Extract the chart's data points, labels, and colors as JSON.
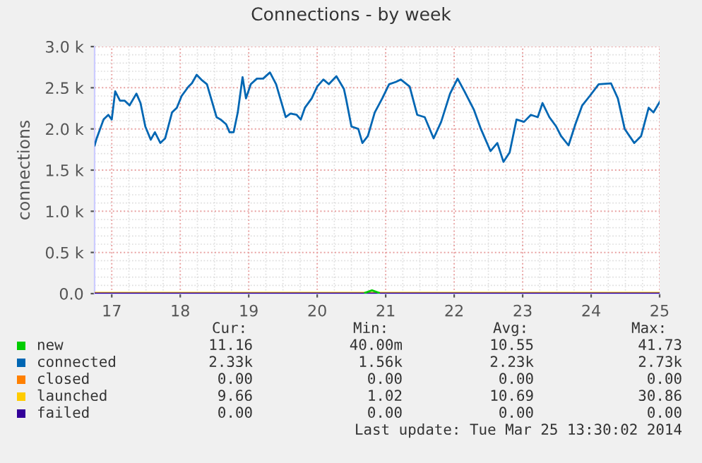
{
  "chart_data": {
    "type": "line",
    "title": "Connections - by week",
    "ylabel": "connections",
    "xlim": [
      16.75,
      25.0
    ],
    "xticks": [
      17,
      18,
      19,
      20,
      21,
      22,
      23,
      24,
      25
    ],
    "ylim": [
      0,
      3000
    ],
    "yticks": [
      {
        "value": 0,
        "label": "0.0"
      },
      {
        "value": 500,
        "label": "0.5 k"
      },
      {
        "value": 1000,
        "label": "1.0 k"
      },
      {
        "value": 1500,
        "label": "1.5 k"
      },
      {
        "value": 2000,
        "label": "2.0 k"
      },
      {
        "value": 2500,
        "label": "2.5 k"
      },
      {
        "value": 3000,
        "label": "3.0 k"
      }
    ],
    "grid": true,
    "legend": "bottom",
    "marker": "none",
    "line_style": "solid",
    "series": [
      {
        "name": "new",
        "color": "#00cc00",
        "x": [
          20.7,
          20.8,
          20.9
        ],
        "values": [
          10,
          40,
          10
        ]
      },
      {
        "name": "connected",
        "color": "#0066b3",
        "x": [
          16.75,
          16.78,
          16.88,
          16.95,
          17.0,
          17.05,
          17.12,
          17.19,
          17.26,
          17.36,
          17.42,
          17.49,
          17.57,
          17.63,
          17.71,
          17.78,
          17.88,
          17.95,
          18.02,
          18.12,
          18.17,
          18.24,
          18.32,
          18.39,
          18.46,
          18.53,
          18.59,
          18.67,
          18.72,
          18.78,
          18.84,
          18.91,
          18.96,
          19.03,
          19.12,
          19.21,
          19.31,
          19.4,
          19.47,
          19.54,
          19.61,
          19.7,
          19.76,
          19.82,
          19.92,
          20.0,
          20.09,
          20.17,
          20.28,
          20.39,
          20.42,
          20.5,
          20.6,
          20.66,
          20.74,
          20.84,
          20.95,
          21.05,
          21.15,
          21.22,
          21.35,
          21.46,
          21.57,
          21.7,
          21.81,
          21.94,
          22.05,
          22.15,
          22.29,
          22.39,
          22.53,
          22.63,
          22.72,
          22.81,
          22.91,
          23.02,
          23.12,
          23.22,
          23.29,
          23.39,
          23.49,
          23.56,
          23.67,
          23.77,
          23.87,
          23.98,
          24.11,
          24.29,
          24.39,
          24.49,
          24.63,
          24.73,
          24.84,
          24.91,
          25.0
        ],
        "values": [
          1800,
          1886,
          2114,
          2171,
          2114,
          2457,
          2343,
          2343,
          2286,
          2429,
          2314,
          2029,
          1869,
          1960,
          1829,
          1886,
          2200,
          2257,
          2400,
          2514,
          2554,
          2657,
          2589,
          2543,
          2343,
          2143,
          2114,
          2057,
          1960,
          1960,
          2200,
          2629,
          2371,
          2543,
          2611,
          2611,
          2686,
          2543,
          2343,
          2143,
          2186,
          2171,
          2114,
          2257,
          2371,
          2514,
          2600,
          2543,
          2640,
          2486,
          2371,
          2029,
          2000,
          1829,
          1914,
          2200,
          2371,
          2543,
          2571,
          2600,
          2514,
          2171,
          2143,
          1886,
          2086,
          2429,
          2611,
          2457,
          2229,
          2000,
          1731,
          1829,
          1600,
          1714,
          2114,
          2086,
          2171,
          2143,
          2314,
          2143,
          2029,
          1914,
          1800,
          2057,
          2286,
          2400,
          2543,
          2554,
          2371,
          2000,
          1829,
          1914,
          2257,
          2200,
          2326
        ]
      },
      {
        "name": "closed",
        "color": "#ff8000"
      },
      {
        "name": "launched",
        "color": "#ffcc00",
        "x": [
          16.75,
          25.0
        ],
        "values": [
          10,
          10
        ]
      },
      {
        "name": "failed",
        "color": "#330099",
        "x": [
          16.75,
          25.0
        ],
        "values": [
          0,
          0
        ]
      }
    ],
    "annotations": [
      "Cur:",
      "Min:",
      "Avg:",
      "Max:",
      "11.16",
      "40.00m",
      "10.55",
      "41.73",
      "2.33k",
      "1.56k",
      "2.23k",
      "2.73k",
      "0.00",
      "0.00",
      "0.00",
      "0.00",
      "9.66",
      "1.02",
      "10.69",
      "30.86",
      "0.00",
      "0.00",
      "0.00",
      "0.00",
      "Last update: Tue Mar 25 13:30:02 2014"
    ]
  }
}
